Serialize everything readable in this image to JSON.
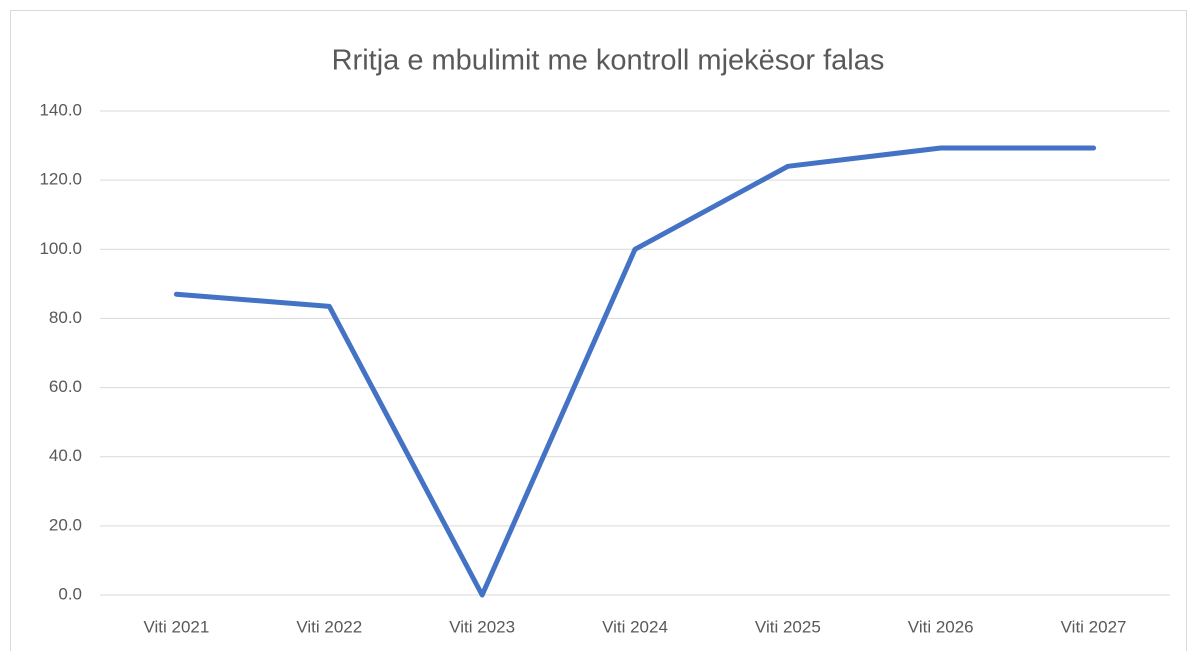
{
  "chart_data": {
    "type": "line",
    "title": "Rritja e mbulimit me kontroll mjekësor falas",
    "categories": [
      "Viti 2021",
      "Viti 2022",
      "Viti 2023",
      "Viti 2024",
      "Viti 2025",
      "Viti 2026",
      "Viti 2027"
    ],
    "series": [
      {
        "name": "Series1",
        "color": "#4472c4",
        "values": [
          87,
          83.5,
          0,
          100,
          124,
          129.3,
          129.3
        ]
      }
    ],
    "ylim": [
      0,
      140
    ],
    "yticks": [
      {
        "value": 0,
        "label": "0.0"
      },
      {
        "value": 20,
        "label": "20.0"
      },
      {
        "value": 40,
        "label": "40.0"
      },
      {
        "value": 60,
        "label": "60.0"
      },
      {
        "value": 80,
        "label": "80.0"
      },
      {
        "value": 100,
        "label": "100.0"
      },
      {
        "value": 120,
        "label": "120.0"
      },
      {
        "value": 140,
        "label": "140.0"
      }
    ],
    "grid": true,
    "legend": false
  }
}
